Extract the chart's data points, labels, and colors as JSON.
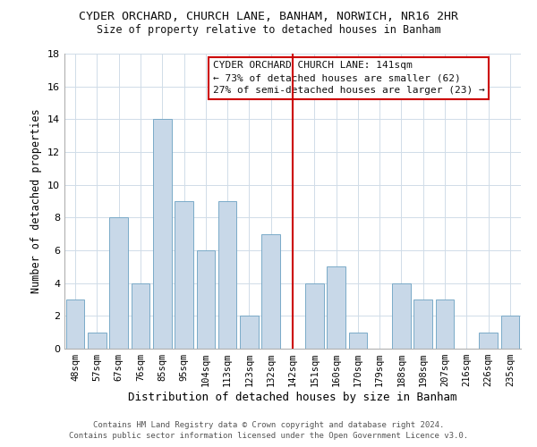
{
  "title": "CYDER ORCHARD, CHURCH LANE, BANHAM, NORWICH, NR16 2HR",
  "subtitle": "Size of property relative to detached houses in Banham",
  "xlabel": "Distribution of detached houses by size in Banham",
  "ylabel": "Number of detached properties",
  "bar_color": "#c8d8e8",
  "bar_edge_color": "#7aaac8",
  "categories": [
    "48sqm",
    "57sqm",
    "67sqm",
    "76sqm",
    "85sqm",
    "95sqm",
    "104sqm",
    "113sqm",
    "123sqm",
    "132sqm",
    "142sqm",
    "151sqm",
    "160sqm",
    "170sqm",
    "179sqm",
    "188sqm",
    "198sqm",
    "207sqm",
    "216sqm",
    "226sqm",
    "235sqm"
  ],
  "values": [
    3,
    1,
    8,
    4,
    14,
    9,
    6,
    9,
    2,
    7,
    0,
    4,
    5,
    1,
    0,
    4,
    3,
    3,
    0,
    1,
    2
  ],
  "ylim": [
    0,
    18
  ],
  "yticks": [
    0,
    2,
    4,
    6,
    8,
    10,
    12,
    14,
    16,
    18
  ],
  "vline_x_index": 10,
  "vline_color": "#cc0000",
  "annotation_title": "CYDER ORCHARD CHURCH LANE: 141sqm",
  "annotation_line1": "← 73% of detached houses are smaller (62)",
  "annotation_line2": "27% of semi-detached houses are larger (23) →",
  "footer1": "Contains HM Land Registry data © Crown copyright and database right 2024.",
  "footer2": "Contains public sector information licensed under the Open Government Licence v3.0.",
  "background_color": "#ffffff",
  "grid_color": "#d0dce8",
  "title_fontsize": 9.5,
  "subtitle_fontsize": 8.5,
  "xlabel_fontsize": 9,
  "ylabel_fontsize": 8.5,
  "tick_fontsize": 8,
  "xtick_fontsize": 7.5,
  "annotation_fontsize": 8,
  "footer_fontsize": 6.5
}
